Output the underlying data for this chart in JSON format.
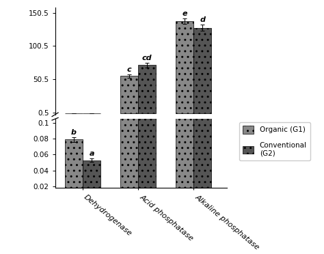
{
  "categories": [
    "Dehydrogenase",
    "Acid phosphatase",
    "Alkaline phosphatase"
  ],
  "organic_values": [
    0.079,
    55.5,
    138.0
  ],
  "conventional_values": [
    0.053,
    72.0,
    128.0
  ],
  "organic_errors": [
    0.003,
    2.5,
    4.0
  ],
  "conventional_errors": [
    0.002,
    3.5,
    5.0
  ],
  "annotations_organic": [
    "b",
    "c",
    "e"
  ],
  "annotations_conventional": [
    "a",
    "cd",
    "d"
  ],
  "upper_yticks": [
    0.5,
    50.5,
    100.5,
    150.5
  ],
  "lower_yticks": [
    0.02,
    0.04,
    0.06,
    0.08,
    0.1
  ],
  "upper_ylim": [
    -2.0,
    158.0
  ],
  "lower_ylim": [
    0.018,
    0.105
  ],
  "bar_width": 0.32,
  "figsize": [
    4.74,
    3.72
  ],
  "dpi": 100
}
